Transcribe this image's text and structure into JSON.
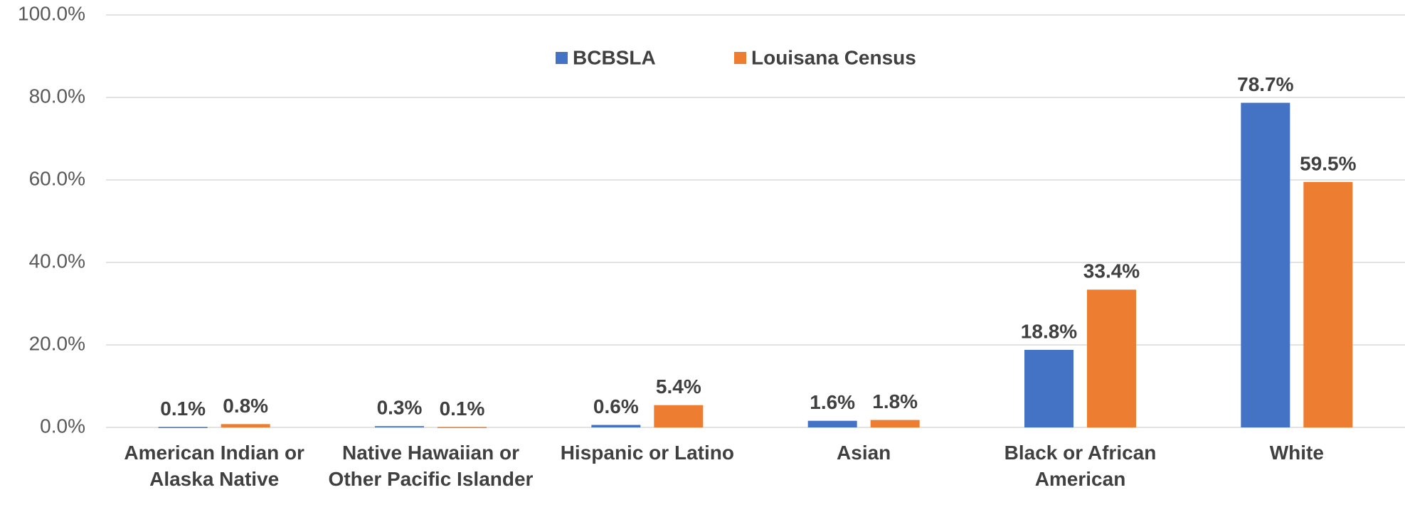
{
  "chart_data": {
    "type": "bar",
    "categories": [
      "American Indian or Alaska Native",
      "Native Hawaiian or Other Pacific Islander",
      "Hispanic or Latino",
      "Asian",
      "Black or African American",
      "White"
    ],
    "series": [
      {
        "name": "BCBSLA",
        "color": "#4472c4",
        "values": [
          0.1,
          0.3,
          0.6,
          1.6,
          18.8,
          78.7
        ],
        "value_labels": [
          "0.1%",
          "0.3%",
          "0.6%",
          "1.6%",
          "18.8%",
          "78.7%"
        ]
      },
      {
        "name": "Louisana Census",
        "color": "#ed7d31",
        "values": [
          0.8,
          0.1,
          5.4,
          1.8,
          33.4,
          59.5
        ],
        "value_labels": [
          "0.8%",
          "0.1%",
          "5.4%",
          "1.8%",
          "33.4%",
          "59.5%"
        ]
      }
    ],
    "ylim": [
      0,
      100
    ],
    "yticks": [
      {
        "value": 0,
        "label": "0.0%"
      },
      {
        "value": 20,
        "label": "20.0%"
      },
      {
        "value": 40,
        "label": "40.0%"
      },
      {
        "value": 60,
        "label": "60.0%"
      },
      {
        "value": 80,
        "label": "80.0%"
      },
      {
        "value": 100,
        "label": "100.0%"
      }
    ],
    "grid": true,
    "legend": "top"
  }
}
